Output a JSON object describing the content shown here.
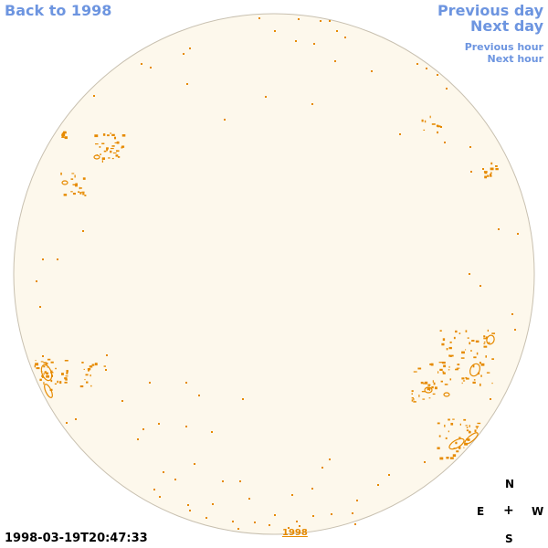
{
  "nav": {
    "back": "Back to 1998",
    "previous_day": "Previous day",
    "next_day": "Next day",
    "previous_hour": "Previous hour",
    "next_hour": "Next hour"
  },
  "timestamp": "1998-03-19T20:47:33",
  "year_link": "1998",
  "compass": {
    "north": "N",
    "east": "E",
    "center": "+",
    "west": "W",
    "south": "S"
  },
  "colors": {
    "disk_fill": "#fdf8ec",
    "disk_stroke": "#c8c0b0",
    "contour": "#e68a00",
    "link": "#6d95e0"
  }
}
